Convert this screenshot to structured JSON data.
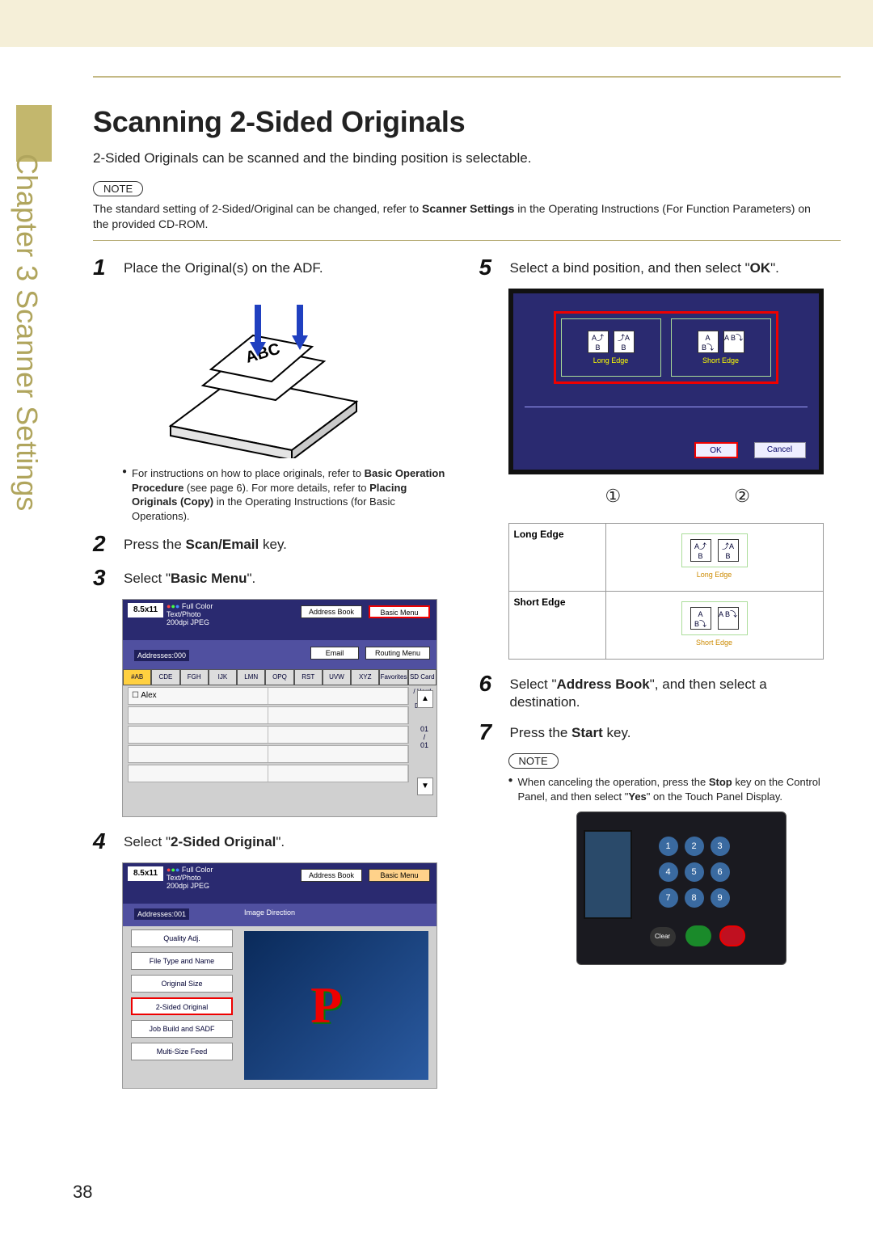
{
  "sidebar": {
    "label": "Chapter 3  Scanner Settings"
  },
  "title": "Scanning 2-Sided Originals",
  "intro": "2-Sided Originals can be scanned and the binding position is selectable.",
  "note1": {
    "pill": "NOTE",
    "body_a": "The standard setting of 2-Sided/Original can be changed, refer to ",
    "body_b": "Scanner Settings",
    "body_c": " in the Operating Instructions (For Function Parameters) on the provided CD-ROM."
  },
  "steps_left": {
    "s1": {
      "num": "1",
      "text": "Place the Original(s) on the ADF."
    },
    "s1_bullet_a": "For instructions on how to place originals, refer to ",
    "s1_bullet_b": "Basic Operation Procedure",
    "s1_bullet_c": " (see page 6). For more details, refer to ",
    "s1_bullet_d": "Placing Originals (Copy)",
    "s1_bullet_e": " in the Operating Instructions (for Basic Operations).",
    "s2": {
      "num": "2",
      "text_a": "Press the ",
      "text_b": "Scan/Email",
      "text_c": " key."
    },
    "s3": {
      "num": "3",
      "text_a": "Select \"",
      "text_b": "Basic Menu",
      "text_c": "\"."
    },
    "s4": {
      "num": "4",
      "text_a": "Select \"",
      "text_b": "2-Sided Original",
      "text_c": "\"."
    }
  },
  "scr3": {
    "badge": "8.5x11",
    "meta1": "Full Color",
    "meta2": "Text/Photo",
    "meta3": "200dpi JPEG",
    "addrbook": "Address Book",
    "basicmenu": "Basic Menu",
    "addresses": "Addresses:000",
    "email": "Email",
    "routing": "Routing Menu",
    "tabs": [
      "#AB",
      "CDE",
      "FGH",
      "IJK",
      "LMN",
      "OPQ",
      "RST",
      "UVW",
      "XYZ",
      "Favorites",
      "SD Card / Hard Drive"
    ],
    "alex": "Alex",
    "count": "01\n/\n01"
  },
  "scr4": {
    "badge": "8.5x11",
    "meta1": "Full Color",
    "meta2": "Text/Photo",
    "meta3": "200dpi JPEG",
    "addrbook": "Address Book",
    "basicmenu": "Basic Menu",
    "addresses": "Addresses:001",
    "imgdir": "Image Direction",
    "buttons": [
      "Quality Adj.",
      "File Type and Name",
      "Original Size",
      "2-Sided Original",
      "Job Build and SADF",
      "Multi-Size Feed"
    ],
    "hl_index": 3
  },
  "steps_right": {
    "s5": {
      "num": "5",
      "text_a": "Select a bind position, and then select \"",
      "text_b": "OK",
      "text_c": "\"."
    },
    "s6": {
      "num": "6",
      "text_a": "Select \"",
      "text_b": "Address Book",
      "text_c": "\", and then select a destination."
    },
    "s7": {
      "num": "7",
      "text_a": "Press the ",
      "text_b": "Start",
      "text_c": " key."
    }
  },
  "scr5": {
    "long": "Long Edge",
    "short": "Short Edge",
    "ok": "OK",
    "cancel": "Cancel",
    "circ1": "①",
    "circ2": "②"
  },
  "edge": {
    "long_lbl": "Long Edge",
    "short_lbl": "Short Edge",
    "long_cap": "Long Edge",
    "short_cap": "Short Edge"
  },
  "note2": {
    "pill": "NOTE",
    "body_a": "When canceling the operation, press the ",
    "body_b": "Stop",
    "body_c": " key on the Control Panel, and then select \"",
    "body_d": "Yes",
    "body_e": "\" on the Touch Panel Display."
  },
  "panel": {
    "keys": [
      "1",
      "2",
      "3",
      "4",
      "5",
      "6",
      "7",
      "8",
      "9"
    ],
    "clear": "Clear"
  },
  "page_number": "38",
  "colors": {
    "accent": "#c3b76d",
    "highlight": "#e00000",
    "screen_bg": "#2a2a70"
  }
}
